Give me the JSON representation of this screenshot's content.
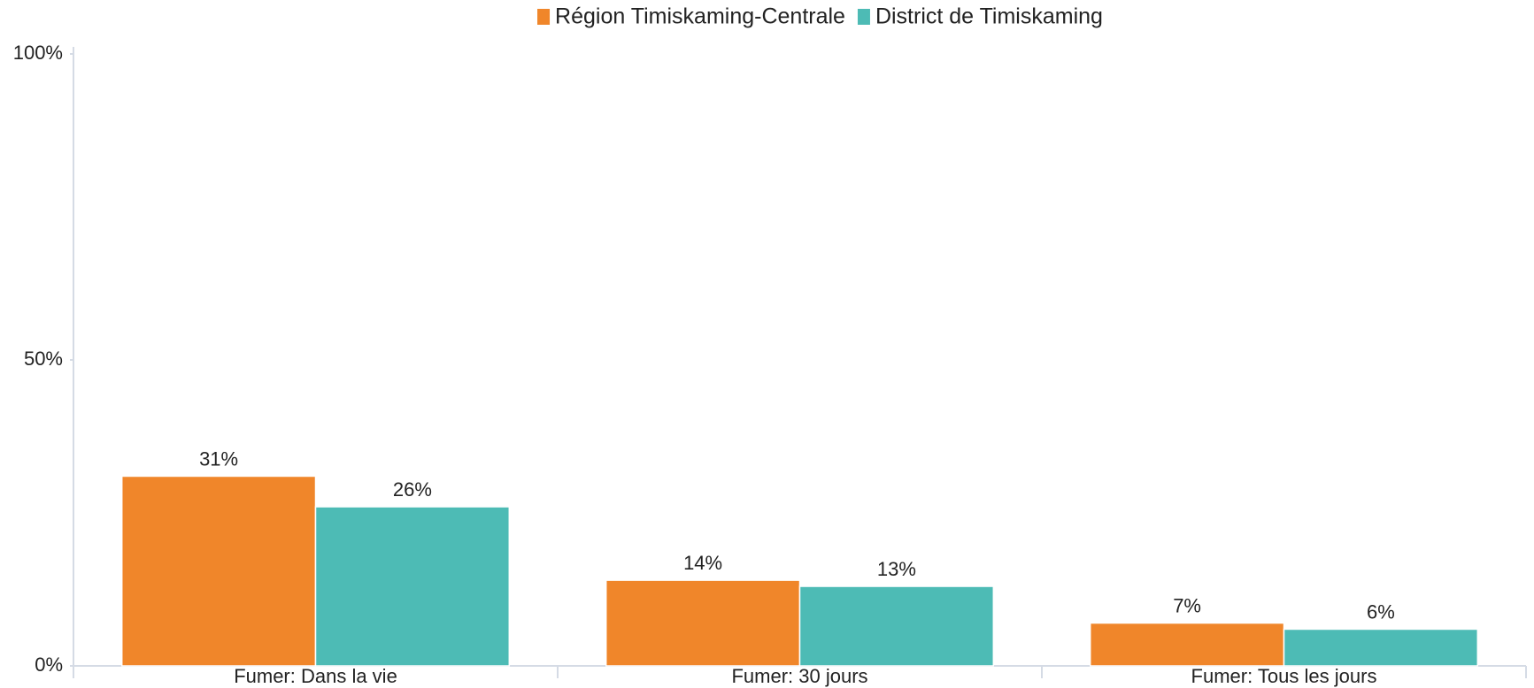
{
  "chart_data": {
    "type": "bar",
    "categories": [
      "Fumer: Dans la vie",
      "Fumer: 30 jours",
      "Fumer: Tous les jours"
    ],
    "series": [
      {
        "name": "Région Timiskaming-Centrale",
        "color": "#f0862a",
        "values": [
          31,
          14,
          7
        ],
        "value_labels": [
          "31%",
          "14%",
          "7%"
        ]
      },
      {
        "name": "District de Timiskaming",
        "color": "#4dbbb5",
        "values": [
          26,
          13,
          6
        ],
        "value_labels": [
          "26%",
          "13%",
          "6%"
        ]
      }
    ],
    "ylim": [
      0,
      100
    ],
    "yticks": [
      {
        "value": 0,
        "label": "0%"
      },
      {
        "value": 50,
        "label": "50%"
      },
      {
        "value": 100,
        "label": "100%"
      }
    ],
    "legend": "top"
  }
}
